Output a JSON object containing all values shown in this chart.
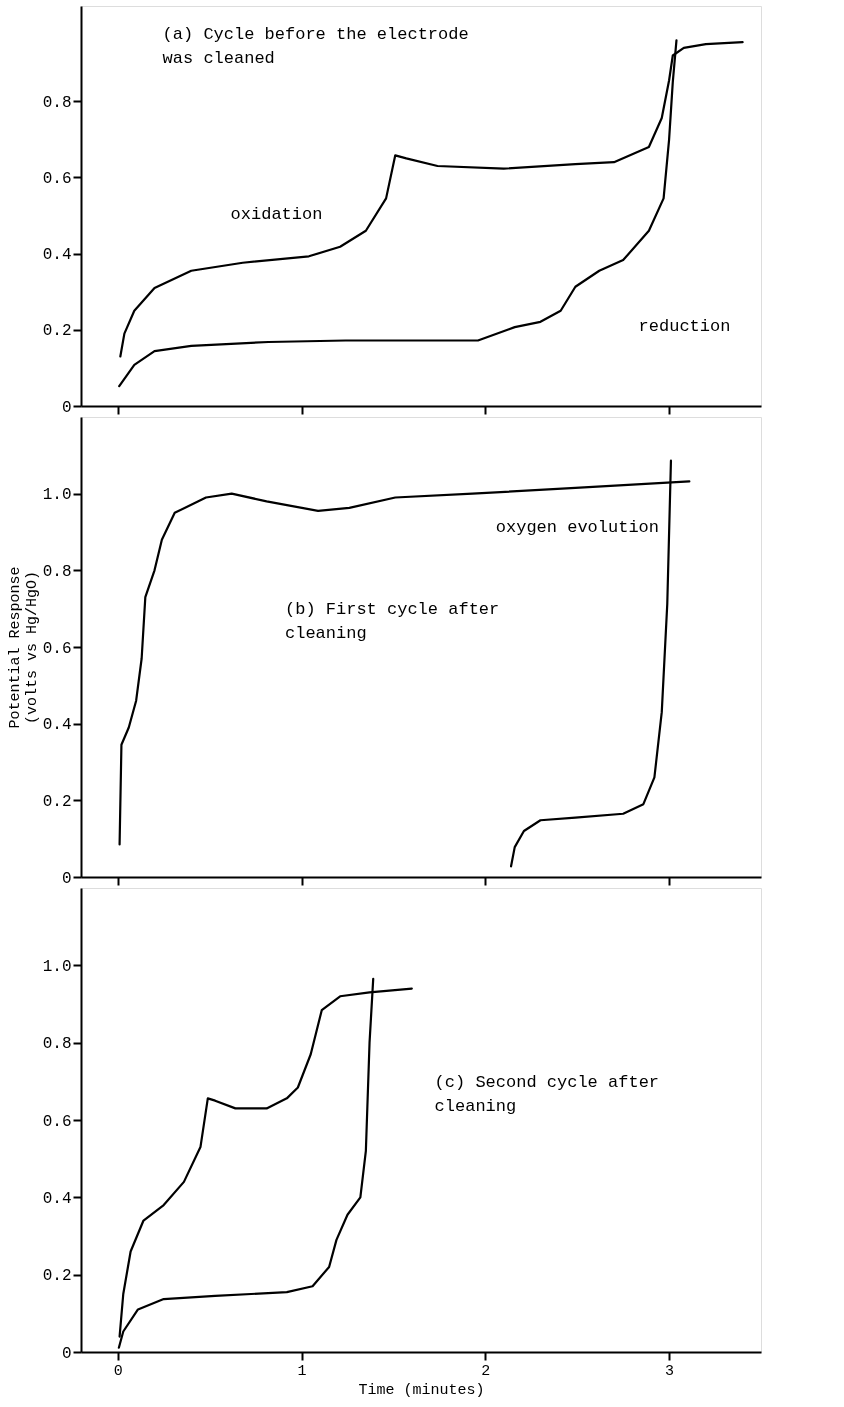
{
  "chart_data": [
    {
      "type": "line",
      "title": "(a) Cycle before the electrode\nwas cleaned",
      "xlim": [
        -0.2,
        3.5
      ],
      "xticks": [
        0,
        1,
        2,
        3
      ],
      "ylim": [
        0,
        1.05
      ],
      "yticks": [
        0,
        0.2,
        0.4,
        0.6,
        0.8
      ],
      "tick_labels": "y",
      "grid": false,
      "legend": false,
      "marker": "none",
      "line_style": "solid",
      "series": [
        {
          "color": "#000000",
          "x": [
            0.014,
            0.036,
            0.09,
            0.2,
            0.4,
            0.68,
            1.04,
            1.21,
            1.35,
            1.46,
            1.51,
            1.57,
            1.74,
            2.1,
            2.49,
            2.7,
            2.89,
            2.96,
            3.0,
            3.02,
            3.08,
            3.2,
            3.4
          ],
          "values": [
            0.13,
            0.19,
            0.25,
            0.31,
            0.355,
            0.376,
            0.393,
            0.418,
            0.46,
            0.545,
            0.658,
            0.65,
            0.63,
            0.623,
            0.635,
            0.64,
            0.68,
            0.756,
            0.855,
            0.92,
            0.94,
            0.95,
            0.955
          ]
        },
        {
          "color": "#000000",
          "x": [
            3.04,
            3.02,
            3.0,
            2.97,
            2.89,
            2.75,
            2.62,
            2.49,
            2.41,
            2.3,
            2.16,
            1.96,
            1.66,
            1.24,
            0.82,
            0.4,
            0.2,
            0.09,
            0.008
          ],
          "values": [
            0.96,
            0.85,
            0.7,
            0.545,
            0.46,
            0.383,
            0.355,
            0.313,
            0.25,
            0.221,
            0.207,
            0.172,
            0.172,
            0.172,
            0.168,
            0.158,
            0.144,
            0.108,
            0.052
          ]
        }
      ],
      "annotations": [
        "oxidation",
        "reduction"
      ]
    },
    {
      "type": "line",
      "title": "(b) First cycle after\ncleaning",
      "ylabel": "Potential Response\n(volts vs Hg/HgO)",
      "xlim": [
        -0.2,
        3.5
      ],
      "xticks": [
        0,
        1,
        2,
        3
      ],
      "ylim": [
        0,
        1.2
      ],
      "yticks": [
        0,
        0.2,
        0.4,
        0.6,
        0.8,
        {
          "value": 1,
          "label": "1.0"
        }
      ],
      "tick_labels": "y",
      "grid": false,
      "legend": false,
      "marker": "none",
      "line_style": "solid",
      "series": [
        {
          "color": "#000000",
          "x": [
            0.01,
            0.02,
            0.06,
            0.1,
            0.13,
            0.15,
            0.2,
            0.24,
            0.31,
            0.48,
            0.62,
            0.81,
            1.09,
            1.26,
            1.51,
            1.93,
            2.49,
            3.11
          ],
          "values": [
            0.085,
            0.345,
            0.39,
            0.46,
            0.57,
            0.73,
            0.8,
            0.88,
            0.95,
            0.99,
            1.0,
            0.98,
            0.955,
            0.963,
            0.99,
            1.0,
            1.015,
            1.032
          ]
        },
        {
          "color": "#000000",
          "x": [
            3.01,
            2.99,
            2.96,
            2.92,
            2.86,
            2.75,
            2.49,
            2.3,
            2.21,
            2.16,
            2.14
          ],
          "values": [
            1.086,
            0.712,
            0.43,
            0.26,
            0.19,
            0.165,
            0.155,
            0.148,
            0.12,
            0.078,
            0.028
          ]
        }
      ],
      "annotations": [
        "oxygen evolution"
      ]
    },
    {
      "type": "line",
      "title": "(c) Second cycle after\ncleaning",
      "xlabel": "Time (minutes)",
      "xlim": [
        -0.2,
        3.5
      ],
      "xticks": [
        0,
        1,
        2,
        3
      ],
      "ylim": [
        0,
        1.2
      ],
      "yticks": [
        0,
        0.2,
        0.4,
        0.6,
        0.8,
        {
          "value": 1,
          "label": "1.0"
        }
      ],
      "grid": false,
      "legend": false,
      "marker": "none",
      "line_style": "solid",
      "series": [
        {
          "color": "#000000",
          "x": [
            0.01,
            0.03,
            0.07,
            0.14,
            0.25,
            0.36,
            0.45,
            0.49,
            0.53,
            0.64,
            0.81,
            0.92,
            0.98,
            1.05,
            1.11,
            1.21,
            1.37,
            1.6
          ],
          "values": [
            0.04,
            0.15,
            0.26,
            0.34,
            0.38,
            0.44,
            0.53,
            0.656,
            0.65,
            0.63,
            0.63,
            0.656,
            0.684,
            0.77,
            0.884,
            0.92,
            0.93,
            0.94
          ]
        },
        {
          "color": "#000000",
          "x": [
            1.39,
            1.37,
            1.35,
            1.32,
            1.25,
            1.19,
            1.15,
            1.06,
            0.92,
            0.53,
            0.25,
            0.11,
            0.03,
            0.006
          ],
          "values": [
            0.965,
            0.8,
            0.52,
            0.4,
            0.355,
            0.29,
            0.22,
            0.17,
            0.155,
            0.145,
            0.137,
            0.11,
            0.053,
            0.011
          ]
        }
      ]
    }
  ]
}
